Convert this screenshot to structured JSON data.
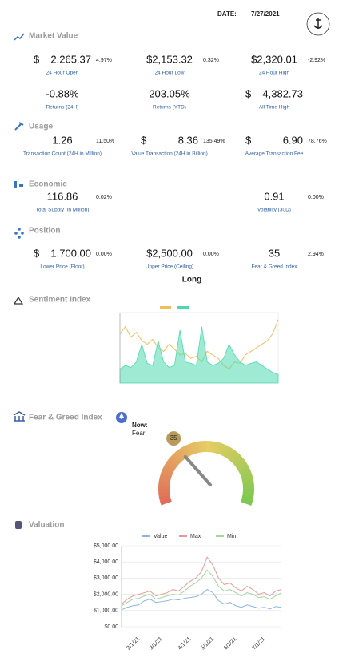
{
  "header": {
    "date_label": "DATE:",
    "date": "7/27/2021"
  },
  "sections": [
    {
      "title": "Market Value",
      "items": [
        {
          "currency": "$",
          "value": "2,265.37",
          "change": "4.97%",
          "label": "24 Hour Open"
        },
        {
          "value": "$2,153.32",
          "change": "0.32%",
          "label": "24 Hour Low"
        },
        {
          "value": "$2,320.01",
          "change": "-2.92%",
          "label": "24 Hour High"
        },
        {
          "value": "-0.88%",
          "label": "Returns (24H)"
        },
        {
          "value": "203.05%",
          "label": "Returns (YTD)"
        },
        {
          "currency": "$",
          "value": "4,382.73",
          "label": "All Time High"
        }
      ]
    },
    {
      "title": "Usage",
      "items": [
        {
          "value": "1.26",
          "change": "11.50%",
          "label": "Transaction Count (24H in Million)"
        },
        {
          "currency": "$",
          "value": "8.36",
          "change": "135.49%",
          "label": "Value Transaction (24H in Billion)"
        },
        {
          "currency": "$",
          "value": "6.90",
          "change": "78.76%",
          "label": "Average Transaction Fee"
        }
      ]
    },
    {
      "title": "Economic",
      "items": [
        {
          "value": "116.86",
          "change": "0.02%",
          "label": "Total Supply (in Million)"
        },
        {
          "value": "0.91",
          "change": "0.00%",
          "label": "Volatility (30D)"
        }
      ]
    },
    {
      "title": "Position",
      "items": [
        {
          "currency": "$",
          "value": "1,700.00",
          "change": "0.00%",
          "label": "Lower Price (Floor)"
        },
        {
          "value": "$2,500.00",
          "change": "0.00%",
          "label": "Upper Price (Ceiling)"
        },
        {
          "value": "35",
          "change": "2.94%",
          "label": "Fear & Greed Index"
        }
      ],
      "signal": "Long"
    },
    {
      "title": "Sentiment Index"
    },
    {
      "title": "Fear & Greed Index"
    },
    {
      "title": "Valuation"
    }
  ],
  "chart_data": [
    {
      "type": "line",
      "ylim": [
        0,
        100
      ],
      "series": [
        {
          "color": "#f3bd5e",
          "values": [
            70,
            80,
            65,
            72,
            60,
            55,
            62,
            50,
            45,
            55,
            48,
            40,
            42,
            35,
            38,
            30,
            45,
            40,
            35,
            25,
            20,
            30,
            28,
            40,
            45,
            50,
            55,
            60,
            70,
            90
          ]
        },
        {
          "color": "#4fd8ad",
          "area": true,
          "values": [
            20,
            25,
            22,
            30,
            55,
            28,
            25,
            60,
            30,
            22,
            25,
            75,
            30,
            28,
            25,
            80,
            30,
            25,
            28,
            35,
            55,
            40,
            30,
            25,
            28,
            30,
            25,
            20,
            15,
            12
          ]
        }
      ]
    },
    {
      "type": "gauge",
      "value": 35,
      "ylim": [
        0,
        100
      ],
      "annotations": [
        "Now:",
        "Fear"
      ]
    },
    {
      "type": "line",
      "categories": [
        null,
        null,
        null,
        "2/1/21",
        null,
        null,
        null,
        "3/1/21",
        null,
        null,
        null,
        null,
        "4/1/21",
        null,
        null,
        null,
        "5/1/21",
        null,
        null,
        null,
        "6/1/21",
        null,
        null,
        null,
        null,
        "7/1/21",
        null,
        null,
        null
      ],
      "ylim": [
        0,
        5000
      ],
      "yticks": [
        {
          "value": 0,
          "label": "$0.00"
        },
        {
          "value": 1000,
          "label": "$1,000.00"
        },
        {
          "value": 2000,
          "label": "$2,000.00"
        },
        {
          "value": 3000,
          "label": "$3,000.00"
        },
        {
          "value": 4000,
          "label": "$4,000.00"
        },
        {
          "value": 5000,
          "label": "$5,000.00"
        }
      ],
      "grid": true,
      "series": [
        {
          "name": "Value",
          "color": "#8fb4e0",
          "values": [
            1050,
            1200,
            1300,
            1350,
            1600,
            1700,
            1500,
            1550,
            1600,
            1700,
            1650,
            1750,
            1800,
            1850,
            2000,
            2300,
            2100,
            1600,
            1400,
            1500,
            1300,
            1200,
            1350,
            1250,
            1150,
            1200,
            1100,
            1250,
            1200
          ]
        },
        {
          "name": "Max",
          "color": "#e89a9a",
          "values": [
            1400,
            1700,
            1900,
            2000,
            2100,
            2200,
            1900,
            2000,
            2100,
            2300,
            2200,
            2500,
            2800,
            3000,
            3400,
            4300,
            3800,
            3000,
            2600,
            2700,
            2400,
            2200,
            2500,
            2300,
            2000,
            2100,
            1900,
            2200,
            2300
          ]
        },
        {
          "name": "Min",
          "color": "#a3d69a",
          "values": [
            1300,
            1500,
            1700,
            1750,
            1900,
            2000,
            1700,
            1800,
            1900,
            2000,
            1950,
            2200,
            2500,
            2700,
            3000,
            3500,
            3100,
            2500,
            2200,
            2300,
            2100,
            1900,
            2100,
            2000,
            1800,
            1850,
            1700,
            1900,
            2100
          ]
        }
      ]
    }
  ]
}
